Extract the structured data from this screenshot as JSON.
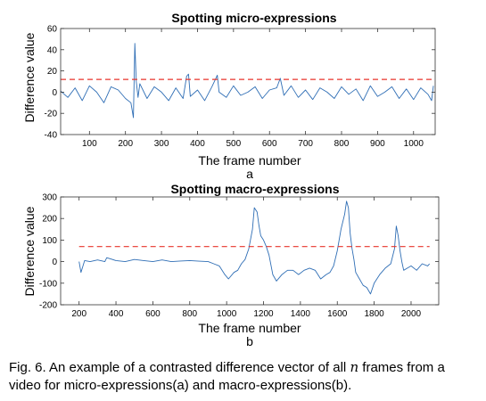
{
  "chart_data": [
    {
      "type": "line",
      "title": "Spotting micro-expressions",
      "xlabel": "The frame number",
      "ylabel": "Difference value",
      "sublabel": "a",
      "xlim": [
        20,
        1060
      ],
      "ylim": [
        -40,
        60
      ],
      "xticks": [
        100,
        200,
        300,
        400,
        500,
        600,
        700,
        800,
        900,
        1000
      ],
      "yticks": [
        -40,
        -20,
        0,
        20,
        40,
        60
      ],
      "threshold": 12,
      "series": [
        {
          "color": "#2f6eb5",
          "x": [
            20,
            40,
            60,
            80,
            100,
            120,
            140,
            160,
            180,
            200,
            215,
            222,
            226,
            230,
            235,
            240,
            260,
            280,
            300,
            320,
            340,
            360,
            370,
            375,
            380,
            400,
            420,
            440,
            455,
            460,
            480,
            500,
            520,
            540,
            560,
            580,
            600,
            620,
            630,
            640,
            660,
            680,
            700,
            720,
            740,
            760,
            780,
            800,
            820,
            840,
            860,
            880,
            900,
            920,
            940,
            960,
            980,
            1000,
            1020,
            1040,
            1050,
            1055
          ],
          "y": [
            1,
            -5,
            4,
            -8,
            6,
            0,
            -10,
            5,
            2,
            -6,
            -10,
            -24,
            46,
            10,
            -5,
            8,
            -6,
            5,
            0,
            -8,
            4,
            -6,
            15,
            17,
            -4,
            2,
            -8,
            5,
            16,
            0,
            -5,
            6,
            -3,
            0,
            5,
            -6,
            2,
            4,
            13,
            -3,
            6,
            -5,
            2,
            -7,
            4,
            0,
            -6,
            5,
            -2,
            3,
            -8,
            6,
            -4,
            0,
            5,
            -6,
            3,
            -7,
            4,
            -2,
            -8,
            6
          ]
        },
        {
          "name": "",
          "color": "#e8342b",
          "style": "dashed",
          "x": [
            20,
            1055
          ],
          "y": [
            12,
            12
          ]
        }
      ]
    },
    {
      "type": "line",
      "title": "Spotting macro-expressions",
      "xlabel": "The frame number",
      "ylabel": "Difference value",
      "sublabel": "b",
      "xlim": [
        100,
        2150
      ],
      "ylim": [
        -200,
        300
      ],
      "xticks": [
        200,
        400,
        600,
        800,
        1000,
        1200,
        1400,
        1600,
        1800,
        2000
      ],
      "yticks": [
        -200,
        -100,
        0,
        100,
        200,
        300
      ],
      "threshold": 70,
      "series": [
        {
          "color": "#2f6eb5",
          "x": [
            200,
            210,
            230,
            260,
            300,
            340,
            350,
            400,
            450,
            500,
            550,
            600,
            650,
            700,
            750,
            800,
            850,
            900,
            930,
            960,
            990,
            1010,
            1040,
            1060,
            1080,
            1100,
            1120,
            1140,
            1150,
            1165,
            1175,
            1185,
            1200,
            1215,
            1230,
            1250,
            1270,
            1300,
            1330,
            1360,
            1390,
            1420,
            1450,
            1480,
            1510,
            1540,
            1560,
            1580,
            1600,
            1620,
            1640,
            1650,
            1660,
            1670,
            1680,
            1690,
            1700,
            1720,
            1740,
            1760,
            1780,
            1800,
            1830,
            1860,
            1890,
            1910,
            1920,
            1930,
            1940,
            1950,
            1960,
            1980,
            2000,
            2030,
            2060,
            2090,
            2100
          ],
          "y": [
            0,
            -50,
            5,
            0,
            8,
            0,
            18,
            5,
            0,
            10,
            5,
            0,
            8,
            0,
            3,
            5,
            2,
            0,
            -10,
            -20,
            -60,
            -80,
            -50,
            -40,
            -10,
            10,
            60,
            150,
            250,
            230,
            170,
            120,
            100,
            70,
            30,
            -60,
            -90,
            -60,
            -40,
            -40,
            -60,
            -40,
            -30,
            -40,
            -80,
            -60,
            -50,
            -20,
            50,
            150,
            220,
            280,
            250,
            130,
            60,
            10,
            -50,
            -80,
            -110,
            -120,
            -150,
            -100,
            -60,
            -30,
            -10,
            60,
            165,
            120,
            50,
            0,
            -40,
            -30,
            -20,
            -40,
            -10,
            -20,
            -10
          ]
        },
        {
          "name": "",
          "color": "#e8342b",
          "style": "dashed",
          "x": [
            200,
            2100
          ],
          "y": [
            70,
            70
          ]
        }
      ]
    }
  ],
  "caption": {
    "before": "Fig. 6. An example of a contrasted difference vector of all ",
    "var": "n",
    "after": " frames from a video for micro-expressions(a) and macro-expressions(b)."
  }
}
